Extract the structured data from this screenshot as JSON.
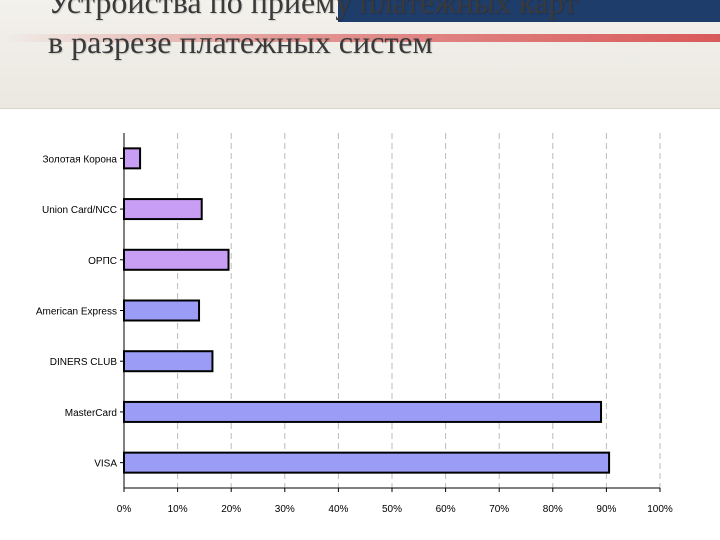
{
  "title_lines": [
    "Устройства по приему платежных карт",
    "в разрезе платежных систем"
  ],
  "colors": {
    "bar_violet": "#c79ef3",
    "bar_blue": "#9a9cf6",
    "bar_outline": "#000000",
    "grid": "#bbbbbb"
  },
  "chart_data": {
    "type": "bar",
    "orientation": "horizontal",
    "title": "",
    "xlabel": "",
    "ylabel": "",
    "categories": [
      "Золотая Корона",
      "Union Card/NCC",
      "ОРПС",
      "American Express",
      "DINERS CLUB",
      "MasterCard",
      "VISA"
    ],
    "values": [
      3,
      14.5,
      19.5,
      14,
      16.5,
      89,
      90.5
    ],
    "bar_colors": [
      "violet",
      "violet",
      "violet",
      "blue",
      "blue",
      "blue",
      "blue"
    ],
    "xlim": [
      0,
      100
    ],
    "xticks": [
      "0%",
      "10%",
      "20%",
      "30%",
      "40%",
      "50%",
      "60%",
      "70%",
      "80%",
      "90%",
      "100%"
    ],
    "grid": true,
    "legend": "none"
  }
}
